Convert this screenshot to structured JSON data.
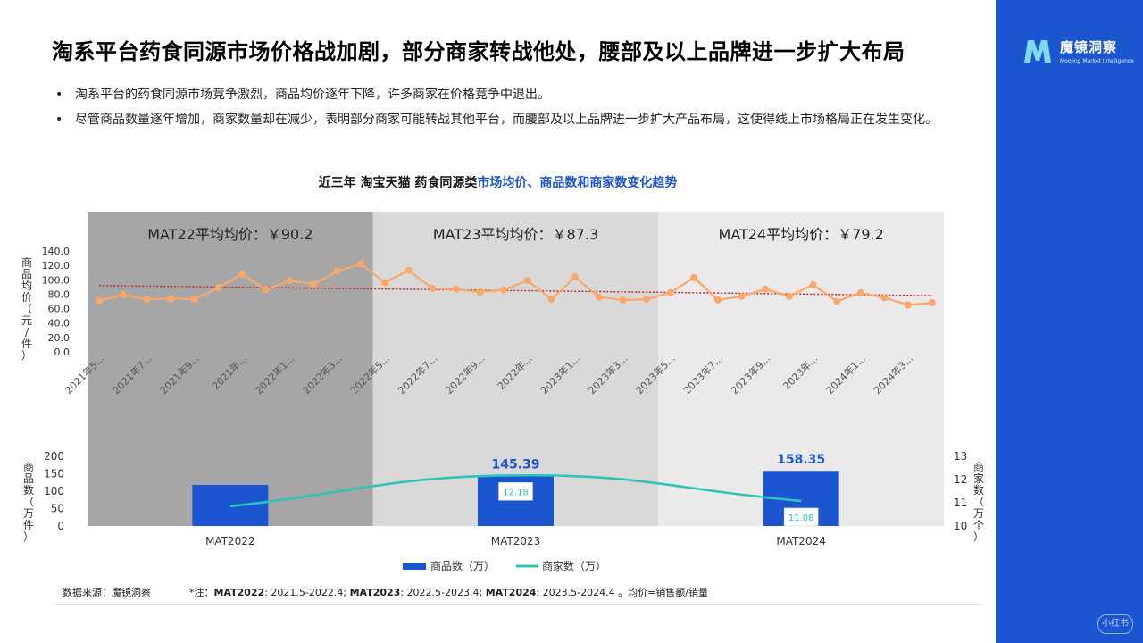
{
  "page": {
    "title": "淘系平台药食同源市场价格战加剧，部分商家转战他处，腰部及以上品牌进一步扩大布局",
    "bullets": [
      "淘系平台的药食同源市场竞争激烈，商品均价逐年下降，许多商家在价格竞争中退出。",
      "尽管商品数量逐年增加，商家数量却在减少，表明部分商家可能转战其他平台，而腰部及以上品牌进一步扩大产品布局，这使得线上市场格局正在发生变化。"
    ],
    "bullet_marker": "•",
    "chart_title_prefix": "近三年 淘宝天猫 药食同源类",
    "chart_title_highlight": "市场均价、商品数和商家数变化趋势",
    "logo_name": "魔镜洞察",
    "logo_tagline": "Moojing Market Intelligence",
    "footer": {
      "source_label": "数据来源：",
      "source_value": "魔镜洞察",
      "note_prefix": "*注：",
      "mat2022_label": "MAT2022",
      "mat2022_range": ": 2021.5-2022.4; ",
      "mat2023_label": "MAT2023",
      "mat2023_range": ": 2022.5-2023.4; ",
      "mat2024_label": "MAT2024",
      "mat2024_range": ": 2023.5-2024.4 。均价=销售额/销量"
    },
    "watermark": "小红书"
  },
  "colors": {
    "brand_blue": "#1c55d0",
    "line_orange": "#f9a86a",
    "trend_red": "#c0272d",
    "merchant_teal": "#2ec4b6",
    "bar_blue": "#1c55d0",
    "band_dark": "#a6a6a6",
    "band_mid": "#d9d9d9",
    "band_light": "#ebe9e9"
  },
  "chart_data": [
    {
      "type": "line",
      "ylabel": "商品均价（元/件）",
      "ylim": [
        0,
        140
      ],
      "y_ticks": [
        "0.0",
        "20.0",
        "40.0",
        "60.0",
        "80.0",
        "100.0",
        "120.0",
        "140.0"
      ],
      "bands": [
        {
          "label": "MAT22平均均价：￥90.2",
          "from": 0,
          "to": 12
        },
        {
          "label": "MAT23平均均价：￥87.3",
          "from": 12,
          "to": 24
        },
        {
          "label": "MAT24平均均价：￥79.2",
          "from": 24,
          "to": 36
        }
      ],
      "x_tick_labels": [
        "2021年5...",
        "2021年7...",
        "2021年9...",
        "2021年...",
        "2022年1...",
        "2022年3...",
        "2022年5...",
        "2022年7...",
        "2022年9...",
        "2022年...",
        "2023年1...",
        "2023年3...",
        "2023年5...",
        "2023年7...",
        "2023年9...",
        "2023年...",
        "2024年1...",
        "2024年3..."
      ],
      "series": [
        {
          "values": [
            71,
            79,
            73,
            74,
            73,
            89,
            108,
            86,
            99,
            94,
            112,
            122,
            96,
            113,
            88,
            87,
            83,
            86,
            99,
            73,
            104,
            76,
            72,
            73,
            82,
            103,
            72,
            77,
            87,
            77,
            93,
            70,
            82,
            75,
            65,
            68
          ],
          "trend": [
            92,
            78
          ]
        }
      ]
    },
    {
      "type": "bar",
      "categories": [
        "MAT2022",
        "MAT2023",
        "MAT2024"
      ],
      "y_left_label": "商品数（万件）",
      "y_right_label": "商家数（万个）",
      "ylim_left": [
        0,
        200
      ],
      "ylim_right": [
        10,
        13
      ],
      "left_ticks": [
        "0",
        "50",
        "100",
        "150",
        "200"
      ],
      "right_ticks": [
        "10",
        "11",
        "12",
        "13"
      ],
      "legend": [
        "商品数（万）",
        "商家数（万）"
      ],
      "series": [
        {
          "name": "商品数（万）",
          "values": [
            118,
            145.39,
            158.35
          ],
          "labels": [
            "",
            "145.39",
            "158.35"
          ]
        },
        {
          "name": "商家数（万）",
          "values": [
            10.85,
            12.18,
            11.08
          ],
          "labels": [
            "",
            "12.18",
            "11.08"
          ]
        }
      ]
    }
  ]
}
